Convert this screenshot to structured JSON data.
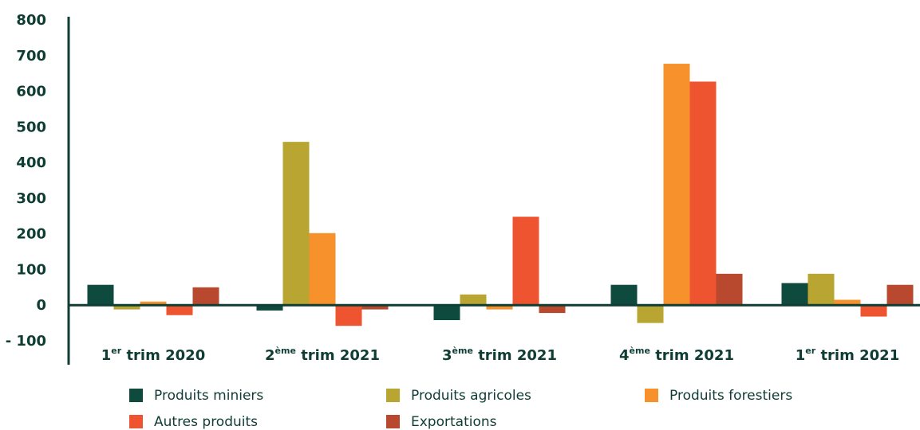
{
  "chart_data": {
    "type": "bar",
    "title": "",
    "xlabel": "",
    "ylabel": "",
    "ylim": [
      -100,
      800
    ],
    "yticks": [
      {
        "value": 800,
        "label": "800"
      },
      {
        "value": 700,
        "label": "700"
      },
      {
        "value": 600,
        "label": "600"
      },
      {
        "value": 500,
        "label": "500"
      },
      {
        "value": 400,
        "label": "400"
      },
      {
        "value": 300,
        "label": "300"
      },
      {
        "value": 200,
        "label": "200"
      },
      {
        "value": 100,
        "label": "100"
      },
      {
        "value": 0,
        "label": "0"
      },
      {
        "value": -100,
        "label": "- 100"
      }
    ],
    "grid": false,
    "legend_position": "bottom",
    "categories": [
      {
        "main": "1",
        "sup": "er",
        "rest": " trim 2020"
      },
      {
        "main": "2",
        "sup": "ème",
        "rest": " trim 2021"
      },
      {
        "main": "3",
        "sup": "ème",
        "rest": " trim 2021"
      },
      {
        "main": "4",
        "sup": "ème",
        "rest": " trim 2021"
      },
      {
        "main": "1",
        "sup": "er",
        "rest": " trim 2021"
      }
    ],
    "series": [
      {
        "name": "Produits miniers",
        "color": "#0f4a3e",
        "values": [
          57,
          -15,
          -42,
          57,
          62
        ]
      },
      {
        "name": "Produits agricoles",
        "color": "#b8a532",
        "values": [
          -12,
          458,
          30,
          -50,
          88
        ]
      },
      {
        "name": "Produits forestiers",
        "color": "#f6912c",
        "values": [
          10,
          202,
          -12,
          677,
          15
        ]
      },
      {
        "name": "Autres produits",
        "color": "#ee5430",
        "values": [
          -28,
          -58,
          248,
          627,
          -32
        ]
      },
      {
        "name": "Exportations",
        "color": "#b8492f",
        "values": [
          50,
          -12,
          -22,
          88,
          57
        ]
      }
    ],
    "axis_color": "#0f3d34"
  }
}
